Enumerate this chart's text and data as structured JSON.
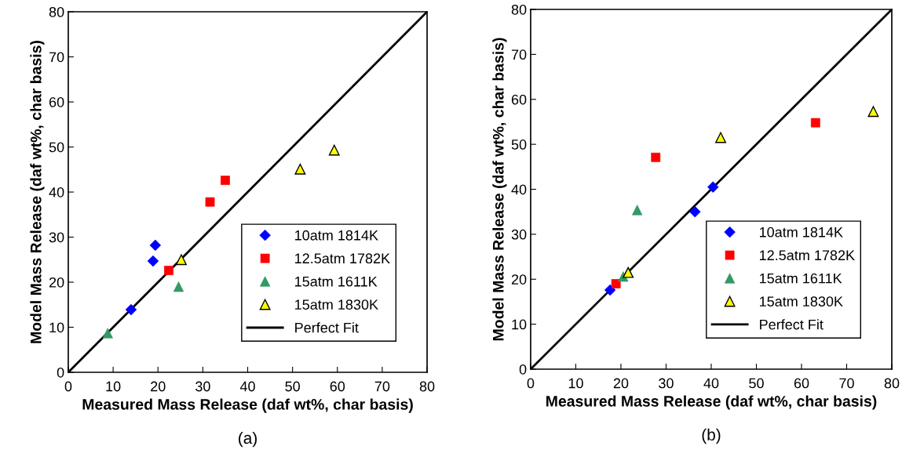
{
  "chart_data": [
    {
      "type": "scatter",
      "xlabel": "Measured Mass Release (daf wt%, char basis)",
      "ylabel": "Model Mass Release (daf wt%, char basis)",
      "annotations": [
        "(a)"
      ],
      "xlim": [
        0,
        80
      ],
      "ylim": [
        0,
        80
      ],
      "xticks": [
        0,
        10,
        20,
        30,
        40,
        50,
        60,
        70,
        80
      ],
      "yticks": [
        0,
        10,
        20,
        30,
        40,
        50,
        60,
        70,
        80
      ],
      "grid": false,
      "legend": "bottom right",
      "series": [
        {
          "name": "10atm 1814K",
          "color": "#0000ff",
          "marker": "diamond",
          "x": [
            14.0,
            18.9,
            19.4
          ],
          "values": [
            13.9,
            24.7,
            28.2
          ]
        },
        {
          "name": "12.5atm 1782K",
          "color": "#ff0000",
          "marker": "square",
          "x": [
            22.4,
            31.6,
            35.0
          ],
          "values": [
            22.6,
            37.8,
            42.6
          ]
        },
        {
          "name": "15atm 1611K",
          "color": "#339966",
          "marker": "triangle",
          "x": [
            8.8,
            24.6
          ],
          "values": [
            8.7,
            19.0
          ]
        },
        {
          "name": "15atm 1830K",
          "color": "#ffff00",
          "marker": "triangle",
          "x": [
            25.2,
            51.7,
            59.3
          ],
          "values": [
            25.0,
            45.1,
            49.3
          ]
        },
        {
          "name": "Perfect Fit",
          "type": "line",
          "color": "#000000",
          "marker": "none",
          "line_style": "solid",
          "x": [
            0,
            80
          ],
          "values": [
            0,
            80
          ]
        }
      ]
    },
    {
      "type": "scatter",
      "xlabel": "Measured Mass Release (daf wt%, char basis)",
      "ylabel": "Model Mass Release (daf wt%, char basis)",
      "annotations": [
        "(b)"
      ],
      "xlim": [
        0,
        80
      ],
      "ylim": [
        0,
        80
      ],
      "xticks": [
        0,
        10,
        20,
        30,
        40,
        50,
        60,
        70,
        80
      ],
      "yticks": [
        0,
        10,
        20,
        30,
        40,
        50,
        60,
        70,
        80
      ],
      "grid": false,
      "legend": "bottom right",
      "series": [
        {
          "name": "10atm 1814K",
          "color": "#0000ff",
          "marker": "diamond",
          "x": [
            17.6,
            36.4,
            40.4
          ],
          "values": [
            17.6,
            35.0,
            40.5
          ]
        },
        {
          "name": "12.5atm 1782K",
          "color": "#ff0000",
          "marker": "square",
          "x": [
            18.9,
            27.7,
            63.1
          ],
          "values": [
            19.0,
            47.1,
            54.8
          ]
        },
        {
          "name": "15atm 1611K",
          "color": "#339966",
          "marker": "triangle",
          "x": [
            20.5,
            23.6
          ],
          "values": [
            20.6,
            35.4
          ]
        },
        {
          "name": "15atm 1830K",
          "color": "#ffff00",
          "marker": "triangle",
          "x": [
            21.6,
            42.1,
            75.9
          ],
          "values": [
            21.5,
            51.5,
            57.3
          ]
        },
        {
          "name": "Perfect Fit",
          "type": "line",
          "color": "#000000",
          "marker": "none",
          "line_style": "solid",
          "x": [
            0,
            80
          ],
          "values": [
            0,
            80
          ]
        }
      ]
    }
  ]
}
